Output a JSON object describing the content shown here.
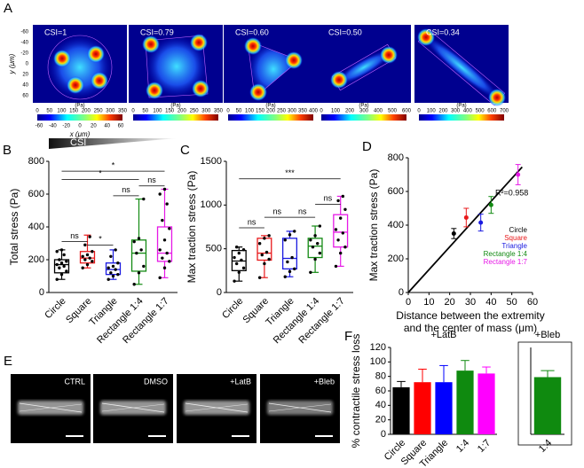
{
  "traction_maps": {
    "panel": "A",
    "ylabel": "y (μm)",
    "xlabel": "x (μm)",
    "yticks": [
      -60,
      -40,
      -20,
      0,
      20,
      40,
      60
    ],
    "xticks": [
      -60,
      -40,
      -20,
      0,
      20,
      40,
      60
    ],
    "maps": [
      {
        "title": "CSI=1",
        "unit": "(Pa)",
        "scale_ticks": [
          0,
          50,
          100,
          150,
          200,
          250,
          300,
          350
        ]
      },
      {
        "title": "CSI=0.79",
        "unit": "(Pa)",
        "scale_ticks": [
          0,
          50,
          100,
          150,
          200,
          250,
          300,
          350
        ]
      },
      {
        "title": "CSI=0.60",
        "unit": "(Pa)",
        "scale_ticks": [
          0,
          50,
          100,
          150,
          200,
          250,
          300,
          350,
          400
        ]
      },
      {
        "title": "CSI=0.50",
        "unit": "(Pa)",
        "scale_ticks": [
          0,
          100,
          200,
          300,
          400,
          500,
          600
        ]
      },
      {
        "title": "CSI=0.34",
        "unit": "(Pa)",
        "scale_ticks": [
          0,
          100,
          200,
          300,
          400,
          500,
          600,
          700
        ]
      }
    ]
  },
  "micrographs": {
    "panel": "E",
    "labels": [
      "CTRL",
      "DMSO",
      "+LatB",
      "+Bleb"
    ]
  },
  "chart_data": [
    {
      "type": "box",
      "panel": "B",
      "csi_label": "CSI",
      "ylabel": "Total stress (Pa)",
      "ylim": [
        0,
        800
      ],
      "yticks": [
        0,
        200,
        400,
        600,
        800
      ],
      "categories": [
        "Circle",
        "Square",
        "Triangle",
        "Rectangle 1:4",
        "Rectangle 1:7"
      ],
      "colors": [
        "#000000",
        "#e8191b",
        "#1a1ae0",
        "#138a13",
        "#e619e6"
      ],
      "boxes": [
        {
          "min": 80,
          "q1": 120,
          "median": 170,
          "q3": 200,
          "max": 260,
          "points": [
            80,
            110,
            130,
            150,
            160,
            170,
            180,
            190,
            200,
            230,
            250,
            260
          ]
        },
        {
          "min": 150,
          "q1": 180,
          "median": 210,
          "q3": 250,
          "max": 350,
          "points": [
            150,
            170,
            190,
            200,
            210,
            220,
            230,
            250,
            290,
            340
          ]
        },
        {
          "min": 80,
          "q1": 110,
          "median": 140,
          "q3": 180,
          "max": 260,
          "points": [
            80,
            100,
            110,
            120,
            140,
            150,
            160,
            180,
            220,
            260
          ]
        },
        {
          "min": 50,
          "q1": 130,
          "median": 240,
          "q3": 320,
          "max": 570,
          "points": [
            50,
            120,
            160,
            240,
            260,
            310,
            330,
            570
          ]
        },
        {
          "min": 90,
          "q1": 190,
          "median": 240,
          "q3": 400,
          "max": 630,
          "points": [
            90,
            150,
            190,
            210,
            240,
            260,
            320,
            390,
            440,
            540,
            600,
            630
          ]
        }
      ],
      "brackets": [
        {
          "span": [
            "Circle",
            "Square"
          ],
          "y": 310,
          "label": "ns"
        },
        {
          "span": [
            "Square",
            "Triangle"
          ],
          "y": 290,
          "label": "*"
        },
        {
          "span": [
            "Triangle",
            "Rectangle 1:4"
          ],
          "y": 590,
          "label": "ns"
        },
        {
          "span": [
            "Rectangle 1:4",
            "Rectangle 1:7"
          ],
          "y": 650,
          "label": "ns"
        },
        {
          "span": [
            "Circle",
            "Rectangle 1:4"
          ],
          "y": 690,
          "label": "*"
        },
        {
          "span": [
            "Circle",
            "Rectangle 1:7"
          ],
          "y": 740,
          "label": "*"
        }
      ]
    },
    {
      "type": "box",
      "panel": "C",
      "ylabel": "Max traction stress (Pa)",
      "ylim": [
        0,
        1500
      ],
      "yticks": [
        0,
        500,
        1000,
        1500
      ],
      "categories": [
        "Circle",
        "Square",
        "Triangle",
        "Rectangle 1:4",
        "Rectangle 1:7"
      ],
      "colors": [
        "#000000",
        "#e8191b",
        "#1a1ae0",
        "#138a13",
        "#e619e6"
      ],
      "boxes": [
        {
          "min": 130,
          "q1": 250,
          "median": 360,
          "q3": 480,
          "max": 520,
          "points": [
            130,
            230,
            280,
            330,
            370,
            400,
            450,
            490,
            520
          ]
        },
        {
          "min": 170,
          "q1": 370,
          "median": 450,
          "q3": 620,
          "max": 650,
          "points": [
            170,
            330,
            380,
            430,
            460,
            560,
            620,
            650
          ]
        },
        {
          "min": 180,
          "q1": 270,
          "median": 390,
          "q3": 620,
          "max": 700,
          "points": [
            180,
            240,
            270,
            350,
            400,
            600,
            660,
            700
          ]
        },
        {
          "min": 230,
          "q1": 400,
          "median": 530,
          "q3": 620,
          "max": 760,
          "points": [
            230,
            380,
            450,
            520,
            560,
            600,
            650,
            760
          ]
        },
        {
          "min": 300,
          "q1": 520,
          "median": 690,
          "q3": 890,
          "max": 1100,
          "points": [
            300,
            450,
            520,
            600,
            680,
            720,
            850,
            950,
            1050,
            1100
          ]
        }
      ],
      "brackets": [
        {
          "span": [
            "Circle",
            "Square"
          ],
          "y": 740,
          "label": "ns"
        },
        {
          "span": [
            "Square",
            "Triangle"
          ],
          "y": 860,
          "label": "ns"
        },
        {
          "span": [
            "Triangle",
            "Rectangle 1:4"
          ],
          "y": 860,
          "label": "ns"
        },
        {
          "span": [
            "Rectangle 1:4",
            "Rectangle 1:7"
          ],
          "y": 1010,
          "label": "ns"
        },
        {
          "span": [
            "Circle",
            "Rectangle 1:7"
          ],
          "y": 1300,
          "label": "***"
        }
      ]
    },
    {
      "type": "scatter",
      "panel": "D",
      "ylabel": "Max traction stress (Pa)",
      "xlabel": [
        "Distance between the extremity",
        "and the center of mass (μm)"
      ],
      "xlim": [
        0,
        60
      ],
      "xticks": [
        0,
        10,
        20,
        30,
        40,
        50,
        60
      ],
      "ylim": [
        0,
        800
      ],
      "yticks": [
        0,
        200,
        400,
        600,
        800
      ],
      "annotation": "R²=0.958",
      "fit": {
        "x": [
          0,
          55
        ],
        "y": [
          0,
          745
        ]
      },
      "series": [
        {
          "name": "Circle",
          "color": "#000000",
          "x": [
            22
          ],
          "values": [
            350
          ],
          "errors": [
            30
          ]
        },
        {
          "name": "Square",
          "color": "#e8191b",
          "x": [
            28
          ],
          "values": [
            445
          ],
          "errors": [
            55
          ]
        },
        {
          "name": "Triangle",
          "color": "#1a1ae0",
          "x": [
            35
          ],
          "values": [
            415
          ],
          "errors": [
            50
          ]
        },
        {
          "name": "Rectangle 1:4",
          "color": "#138a13",
          "x": [
            40
          ],
          "values": [
            520
          ],
          "errors": [
            50
          ]
        },
        {
          "name": "Rectangle 1:7",
          "color": "#e619e6",
          "x": [
            53
          ],
          "values": [
            700
          ],
          "errors": [
            60
          ]
        }
      ]
    },
    {
      "type": "bar",
      "panel": "F",
      "title": "+LatB",
      "ylabel": "% contractile stress loss",
      "ylim": [
        0,
        120
      ],
      "yticks": [
        0,
        20,
        40,
        60,
        80,
        100,
        120
      ],
      "categories": [
        "Circle",
        "Square",
        "Triangle",
        "1:4",
        "1:7"
      ],
      "colors": [
        "#000000",
        "#ff0000",
        "#0000ff",
        "#0f8a0f",
        "#ff00ff"
      ],
      "values": [
        65,
        72,
        72,
        88,
        84
      ],
      "errors": [
        8,
        18,
        23,
        14,
        9
      ]
    },
    {
      "type": "bar",
      "title": "+Bleb",
      "ylim": [
        0,
        120
      ],
      "categories": [
        "1:4"
      ],
      "colors": [
        "#0f8a0f"
      ],
      "values": [
        79
      ],
      "errors": [
        9
      ]
    }
  ]
}
